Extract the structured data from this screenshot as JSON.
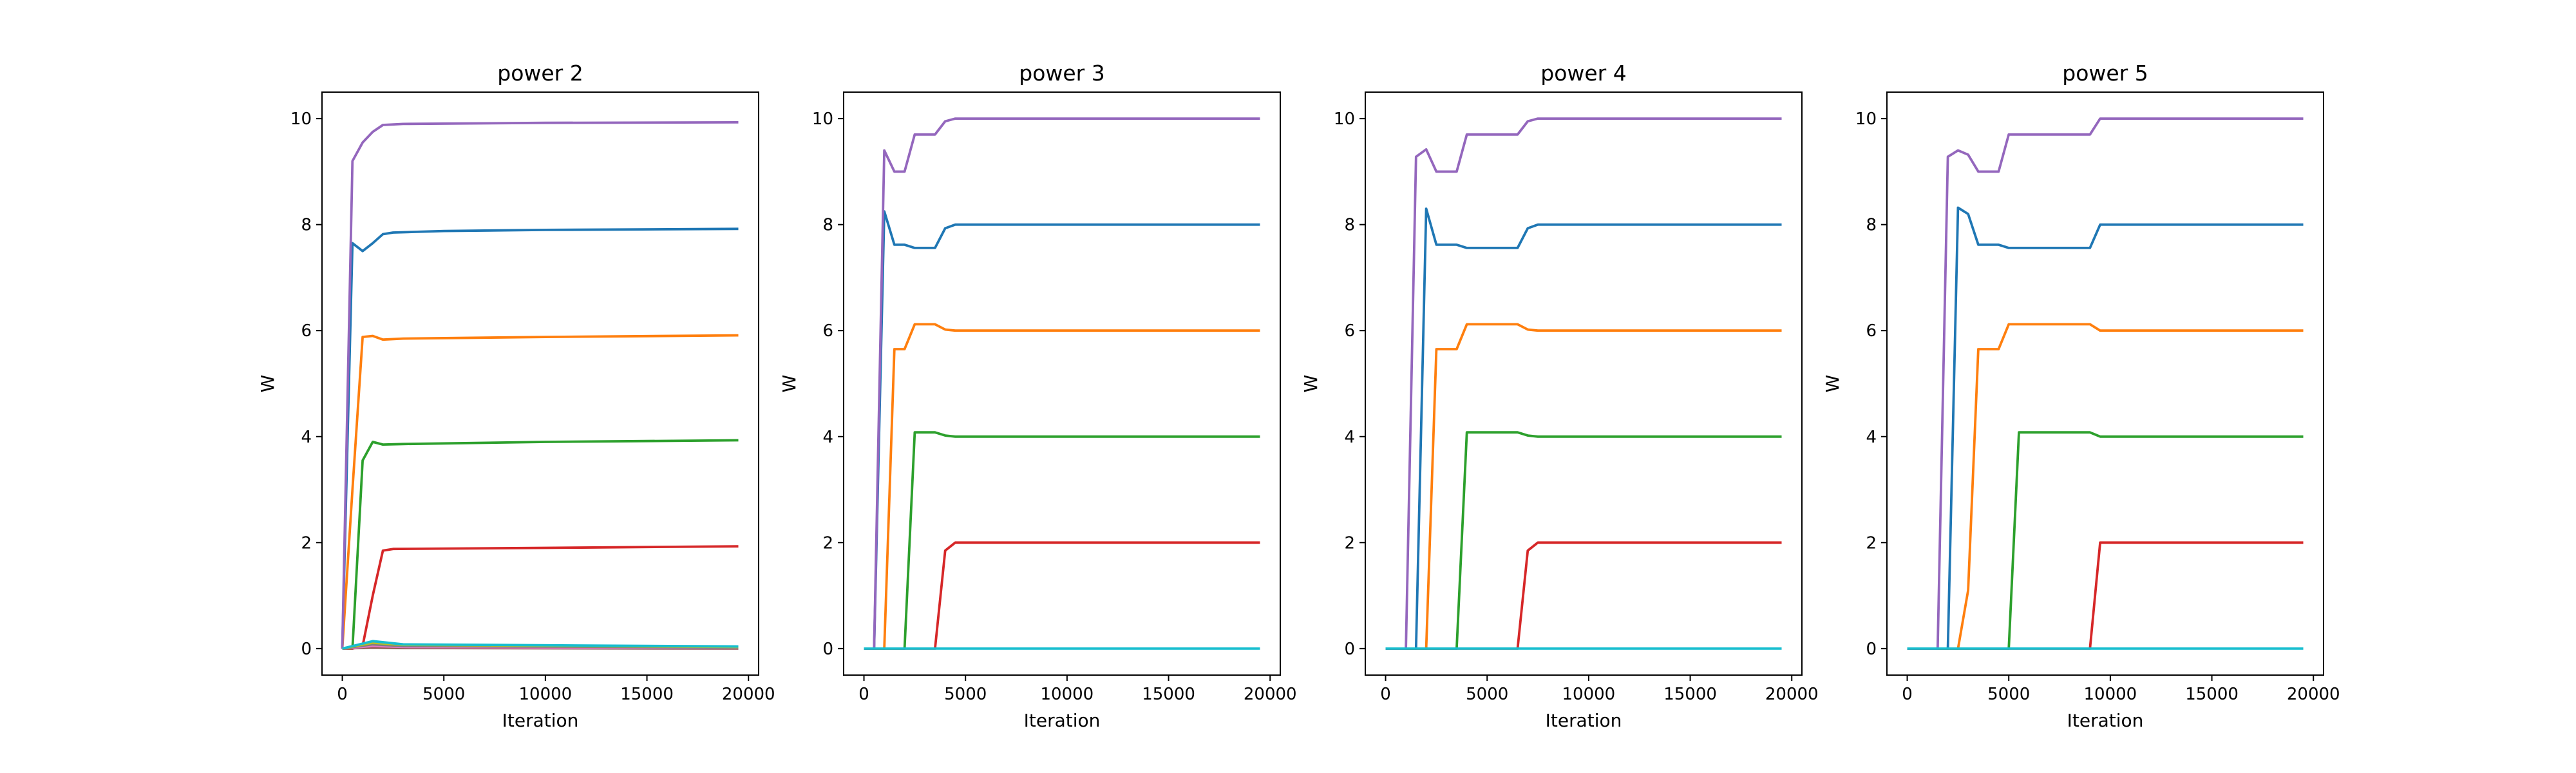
{
  "chart_data": [
    {
      "type": "line",
      "title": "power 2",
      "xlabel": "Iteration",
      "ylabel": "W",
      "xlim": [
        -1000,
        20500
      ],
      "ylim": [
        -0.5,
        10.5
      ],
      "xticks": [
        0,
        5000,
        10000,
        15000,
        20000
      ],
      "yticks": [
        0,
        2,
        4,
        6,
        8,
        10
      ],
      "grid": false,
      "series": [
        {
          "color": "#1f77b4",
          "x": [
            0,
            500,
            1000,
            1500,
            2000,
            2500,
            5000,
            10000,
            19500
          ],
          "y": [
            0,
            7.65,
            7.5,
            7.65,
            7.82,
            7.85,
            7.88,
            7.9,
            7.92
          ]
        },
        {
          "color": "#ff7f0e",
          "x": [
            0,
            500,
            1000,
            1500,
            2000,
            3000,
            10000,
            19500
          ],
          "y": [
            0,
            3.0,
            5.88,
            5.9,
            5.83,
            5.85,
            5.88,
            5.91
          ]
        },
        {
          "color": "#2ca02c",
          "x": [
            0,
            500,
            1000,
            1500,
            2000,
            3000,
            10000,
            19500
          ],
          "y": [
            0,
            0,
            3.55,
            3.9,
            3.85,
            3.86,
            3.9,
            3.93
          ]
        },
        {
          "color": "#d62728",
          "x": [
            0,
            500,
            1000,
            1500,
            2000,
            2500,
            10000,
            19500
          ],
          "y": [
            0,
            0,
            0.05,
            1.0,
            1.85,
            1.88,
            1.9,
            1.93
          ]
        },
        {
          "color": "#9467bd",
          "x": [
            0,
            500,
            1000,
            1500,
            2000,
            3000,
            10000,
            19500
          ],
          "y": [
            0,
            9.2,
            9.55,
            9.75,
            9.88,
            9.9,
            9.92,
            9.93
          ]
        },
        {
          "color": "#8c564b",
          "x": [
            0,
            1500,
            3000,
            19500
          ],
          "y": [
            0,
            0.02,
            0.01,
            0.0
          ]
        },
        {
          "color": "#e377c2",
          "x": [
            0,
            1500,
            3000,
            19500
          ],
          "y": [
            0,
            0.05,
            0.03,
            0.01
          ]
        },
        {
          "color": "#7f7f7f",
          "x": [
            0,
            1500,
            3000,
            19500
          ],
          "y": [
            0,
            0.08,
            0.05,
            0.02
          ]
        },
        {
          "color": "#bcbd22",
          "x": [
            0,
            1500,
            3000,
            19500
          ],
          "y": [
            0,
            0.11,
            0.07,
            0.03
          ]
        },
        {
          "color": "#17becf",
          "x": [
            0,
            1500,
            3000,
            19500
          ],
          "y": [
            0,
            0.14,
            0.08,
            0.04
          ]
        }
      ]
    },
    {
      "type": "line",
      "title": "power 3",
      "xlabel": "Iteration",
      "ylabel": "W",
      "xlim": [
        -1000,
        20500
      ],
      "ylim": [
        -0.5,
        10.5
      ],
      "xticks": [
        0,
        5000,
        10000,
        15000,
        20000
      ],
      "yticks": [
        0,
        2,
        4,
        6,
        8,
        10
      ],
      "grid": false,
      "series": [
        {
          "color": "#1f77b4",
          "x": [
            0,
            500,
            1000,
            1500,
            2000,
            2500,
            3000,
            3500,
            4000,
            4500,
            19500
          ],
          "y": [
            0,
            0,
            8.25,
            7.62,
            7.62,
            7.56,
            7.56,
            7.56,
            7.93,
            8.0,
            8.0
          ]
        },
        {
          "color": "#ff7f0e",
          "x": [
            0,
            1000,
            1500,
            2000,
            2500,
            3000,
            3500,
            4000,
            4500,
            19500
          ],
          "y": [
            0,
            0,
            5.65,
            5.65,
            6.12,
            6.12,
            6.12,
            6.02,
            6.0,
            6.0
          ]
        },
        {
          "color": "#2ca02c",
          "x": [
            0,
            2000,
            2500,
            3000,
            3500,
            4000,
            4500,
            19500
          ],
          "y": [
            0,
            0,
            4.08,
            4.08,
            4.08,
            4.02,
            4.0,
            4.0
          ]
        },
        {
          "color": "#d62728",
          "x": [
            0,
            3500,
            4000,
            4500,
            19500
          ],
          "y": [
            0,
            0,
            1.85,
            2.0,
            2.0
          ]
        },
        {
          "color": "#9467bd",
          "x": [
            0,
            500,
            1000,
            1500,
            2000,
            2500,
            3000,
            3500,
            4000,
            4500,
            19500
          ],
          "y": [
            0,
            0,
            9.4,
            9.0,
            9.0,
            9.7,
            9.7,
            9.7,
            9.95,
            10.0,
            10.0
          ]
        },
        {
          "color": "#17becf",
          "x": [
            0,
            19500
          ],
          "y": [
            0,
            0
          ]
        }
      ]
    },
    {
      "type": "line",
      "title": "power 4",
      "xlabel": "Iteration",
      "ylabel": "W",
      "xlim": [
        -1000,
        20500
      ],
      "ylim": [
        -0.5,
        10.5
      ],
      "xticks": [
        0,
        5000,
        10000,
        15000,
        20000
      ],
      "yticks": [
        0,
        2,
        4,
        6,
        8,
        10
      ],
      "grid": false,
      "series": [
        {
          "color": "#1f77b4",
          "x": [
            0,
            1500,
            2000,
            2500,
            3000,
            3500,
            4000,
            5000,
            6500,
            7000,
            7500,
            19500
          ],
          "y": [
            0,
            0,
            8.3,
            7.62,
            7.62,
            7.62,
            7.56,
            7.56,
            7.56,
            7.93,
            8.0,
            8.0
          ]
        },
        {
          "color": "#ff7f0e",
          "x": [
            0,
            2000,
            2500,
            3000,
            3500,
            4000,
            5000,
            6500,
            7000,
            7500,
            19500
          ],
          "y": [
            0,
            0,
            5.65,
            5.65,
            5.65,
            6.12,
            6.12,
            6.12,
            6.02,
            6.0,
            6.0
          ]
        },
        {
          "color": "#2ca02c",
          "x": [
            0,
            3500,
            4000,
            5000,
            6500,
            7000,
            7500,
            19500
          ],
          "y": [
            0,
            0,
            4.08,
            4.08,
            4.08,
            4.02,
            4.0,
            4.0
          ]
        },
        {
          "color": "#d62728",
          "x": [
            0,
            6500,
            7000,
            7500,
            19500
          ],
          "y": [
            0,
            0,
            1.85,
            2.0,
            2.0
          ]
        },
        {
          "color": "#9467bd",
          "x": [
            0,
            1000,
            1500,
            2000,
            2500,
            3000,
            3500,
            4000,
            5000,
            6500,
            7000,
            7500,
            19500
          ],
          "y": [
            0,
            0,
            9.28,
            9.42,
            9.0,
            9.0,
            9.0,
            9.7,
            9.7,
            9.7,
            9.95,
            10.0,
            10.0
          ]
        },
        {
          "color": "#17becf",
          "x": [
            0,
            19500
          ],
          "y": [
            0,
            0
          ]
        }
      ]
    },
    {
      "type": "line",
      "title": "power 5",
      "xlabel": "Iteration",
      "ylabel": "W",
      "xlim": [
        -1000,
        20500
      ],
      "ylim": [
        -0.5,
        10.5
      ],
      "xticks": [
        0,
        5000,
        10000,
        15000,
        20000
      ],
      "yticks": [
        0,
        2,
        4,
        6,
        8,
        10
      ],
      "grid": false,
      "series": [
        {
          "color": "#1f77b4",
          "x": [
            0,
            2000,
            2500,
            3000,
            3500,
            4500,
            5000,
            5500,
            9000,
            9500,
            19500
          ],
          "y": [
            0,
            0,
            8.32,
            8.2,
            7.62,
            7.62,
            7.56,
            7.56,
            7.56,
            8.0,
            8.0
          ]
        },
        {
          "color": "#ff7f0e",
          "x": [
            0,
            2500,
            3000,
            3500,
            4500,
            5000,
            5500,
            9000,
            9500,
            19500
          ],
          "y": [
            0,
            0,
            1.1,
            5.65,
            5.65,
            6.12,
            6.12,
            6.12,
            6.0,
            6.0
          ]
        },
        {
          "color": "#2ca02c",
          "x": [
            0,
            5000,
            5500,
            9000,
            9500,
            19500
          ],
          "y": [
            0,
            0,
            4.08,
            4.08,
            4.0,
            4.0
          ]
        },
        {
          "color": "#d62728",
          "x": [
            0,
            9000,
            9500,
            19500
          ],
          "y": [
            0,
            0,
            2.0,
            2.0
          ]
        },
        {
          "color": "#9467bd",
          "x": [
            0,
            1500,
            2000,
            2500,
            3000,
            3500,
            4500,
            5000,
            5500,
            9000,
            9500,
            19500
          ],
          "y": [
            0,
            0,
            9.28,
            9.4,
            9.32,
            9.0,
            9.0,
            9.7,
            9.7,
            9.7,
            10.0,
            10.0
          ]
        },
        {
          "color": "#17becf",
          "x": [
            0,
            19500
          ],
          "y": [
            0,
            0
          ]
        }
      ]
    }
  ]
}
